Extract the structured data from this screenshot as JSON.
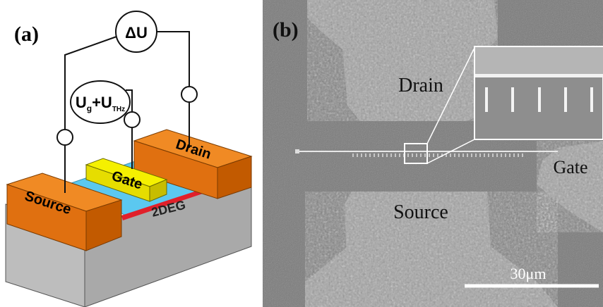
{
  "panel_a": {
    "label": "(a)",
    "delta_u": "ΔU",
    "bias": {
      "u1": "U",
      "sub1": "g",
      "op": "+",
      "u2": "U",
      "sub2": "THz"
    },
    "drain": "Drain",
    "gate": "Gate",
    "source": "Source",
    "channel": "2DEG"
  },
  "panel_b": {
    "label": "(b)",
    "drain": "Drain",
    "source": "Source",
    "gate": "Gate",
    "scale_bar": "30μm"
  }
}
